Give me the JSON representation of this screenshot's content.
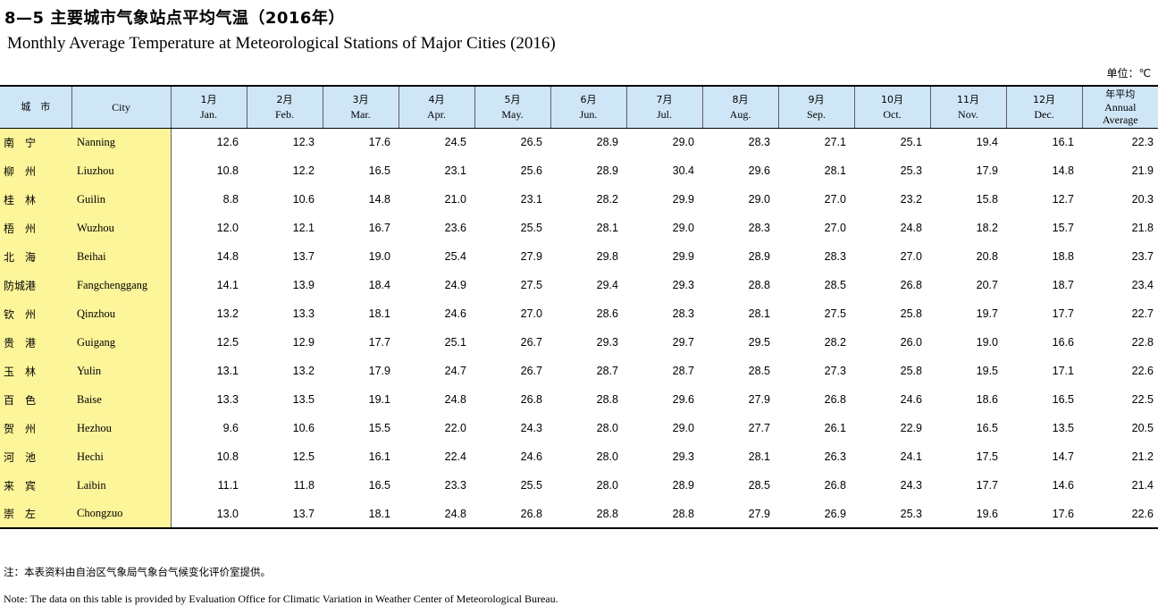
{
  "title_cn": "8—5 主要城市气象站点平均气温（2016年）",
  "title_en": "Monthly Average Temperature at Meteorological Stations of Major Cities (2016)",
  "unit": "单位：℃",
  "headers": {
    "city_cn": "城　市",
    "city_en": "City",
    "months": [
      {
        "cn": "1月",
        "en": "Jan."
      },
      {
        "cn": "2月",
        "en": "Feb."
      },
      {
        "cn": "3月",
        "en": "Mar."
      },
      {
        "cn": "4月",
        "en": "Apr."
      },
      {
        "cn": "5月",
        "en": "May."
      },
      {
        "cn": "6月",
        "en": "Jun."
      },
      {
        "cn": "7月",
        "en": "Jul."
      },
      {
        "cn": "8月",
        "en": "Aug."
      },
      {
        "cn": "9月",
        "en": "Sep."
      },
      {
        "cn": "10月",
        "en": "Oct."
      },
      {
        "cn": "11月",
        "en": "Nov."
      },
      {
        "cn": "12月",
        "en": "Dec."
      }
    ],
    "annual_cn": "年平均",
    "annual_en1": "Annual",
    "annual_en2": "Average"
  },
  "rows": [
    {
      "cn": "南　宁",
      "en": "Nanning",
      "values": [
        "12.6",
        "12.3",
        "17.6",
        "24.5",
        "26.5",
        "28.9",
        "29.0",
        "28.3",
        "27.1",
        "25.1",
        "19.4",
        "16.1"
      ],
      "avg": "22.3"
    },
    {
      "cn": "柳　州",
      "en": "Liuzhou",
      "values": [
        "10.8",
        "12.2",
        "16.5",
        "23.1",
        "25.6",
        "28.9",
        "30.4",
        "29.6",
        "28.1",
        "25.3",
        "17.9",
        "14.8"
      ],
      "avg": "21.9"
    },
    {
      "cn": "桂　林",
      "en": "Guilin",
      "values": [
        "8.8",
        "10.6",
        "14.8",
        "21.0",
        "23.1",
        "28.2",
        "29.9",
        "29.0",
        "27.0",
        "23.2",
        "15.8",
        "12.7"
      ],
      "avg": "20.3"
    },
    {
      "cn": "梧　州",
      "en": "Wuzhou",
      "values": [
        "12.0",
        "12.1",
        "16.7",
        "23.6",
        "25.5",
        "28.1",
        "29.0",
        "28.3",
        "27.0",
        "24.8",
        "18.2",
        "15.7"
      ],
      "avg": "21.8"
    },
    {
      "cn": "北　海",
      "en": "Beihai",
      "values": [
        "14.8",
        "13.7",
        "19.0",
        "25.4",
        "27.9",
        "29.8",
        "29.9",
        "28.9",
        "28.3",
        "27.0",
        "20.8",
        "18.8"
      ],
      "avg": "23.7"
    },
    {
      "cn": "防城港",
      "en": "Fangchenggang",
      "values": [
        "14.1",
        "13.9",
        "18.4",
        "24.9",
        "27.5",
        "29.4",
        "29.3",
        "28.8",
        "28.5",
        "26.8",
        "20.7",
        "18.7"
      ],
      "avg": "23.4"
    },
    {
      "cn": "钦　州",
      "en": "Qinzhou",
      "values": [
        "13.2",
        "13.3",
        "18.1",
        "24.6",
        "27.0",
        "28.6",
        "28.3",
        "28.1",
        "27.5",
        "25.8",
        "19.7",
        "17.7"
      ],
      "avg": "22.7"
    },
    {
      "cn": "贵　港",
      "en": "Guigang",
      "values": [
        "12.5",
        "12.9",
        "17.7",
        "25.1",
        "26.7",
        "29.3",
        "29.7",
        "29.5",
        "28.2",
        "26.0",
        "19.0",
        "16.6"
      ],
      "avg": "22.8"
    },
    {
      "cn": "玉　林",
      "en": "Yulin",
      "values": [
        "13.1",
        "13.2",
        "17.9",
        "24.7",
        "26.7",
        "28.7",
        "28.7",
        "28.5",
        "27.3",
        "25.8",
        "19.5",
        "17.1"
      ],
      "avg": "22.6"
    },
    {
      "cn": "百　色",
      "en": "Baise",
      "values": [
        "13.3",
        "13.5",
        "19.1",
        "24.8",
        "26.8",
        "28.8",
        "29.6",
        "27.9",
        "26.8",
        "24.6",
        "18.6",
        "16.5"
      ],
      "avg": "22.5"
    },
    {
      "cn": "贺　州",
      "en": "Hezhou",
      "values": [
        "9.6",
        "10.6",
        "15.5",
        "22.0",
        "24.3",
        "28.0",
        "29.0",
        "27.7",
        "26.1",
        "22.9",
        "16.5",
        "13.5"
      ],
      "avg": "20.5"
    },
    {
      "cn": "河　池",
      "en": "Hechi",
      "values": [
        "10.8",
        "12.5",
        "16.1",
        "22.4",
        "24.6",
        "28.0",
        "29.3",
        "28.1",
        "26.3",
        "24.1",
        "17.5",
        "14.7"
      ],
      "avg": "21.2"
    },
    {
      "cn": "来　宾",
      "en": "Laibin",
      "values": [
        "11.1",
        "11.8",
        "16.5",
        "23.3",
        "25.5",
        "28.0",
        "28.9",
        "28.5",
        "26.8",
        "24.3",
        "17.7",
        "14.6"
      ],
      "avg": "21.4"
    },
    {
      "cn": "崇　左",
      "en": "Chongzuo",
      "values": [
        "13.0",
        "13.7",
        "18.1",
        "24.8",
        "26.8",
        "28.8",
        "28.8",
        "27.9",
        "26.9",
        "25.3",
        "19.6",
        "17.6"
      ],
      "avg": "22.6"
    }
  ],
  "note_cn": "注：本表资料由自治区气象局气象台气候变化评价室提供。",
  "note_en": "Note: The data on this table is provided by Evaluation Office for Climatic Variation in Weather Center of Meteorological Bureau."
}
